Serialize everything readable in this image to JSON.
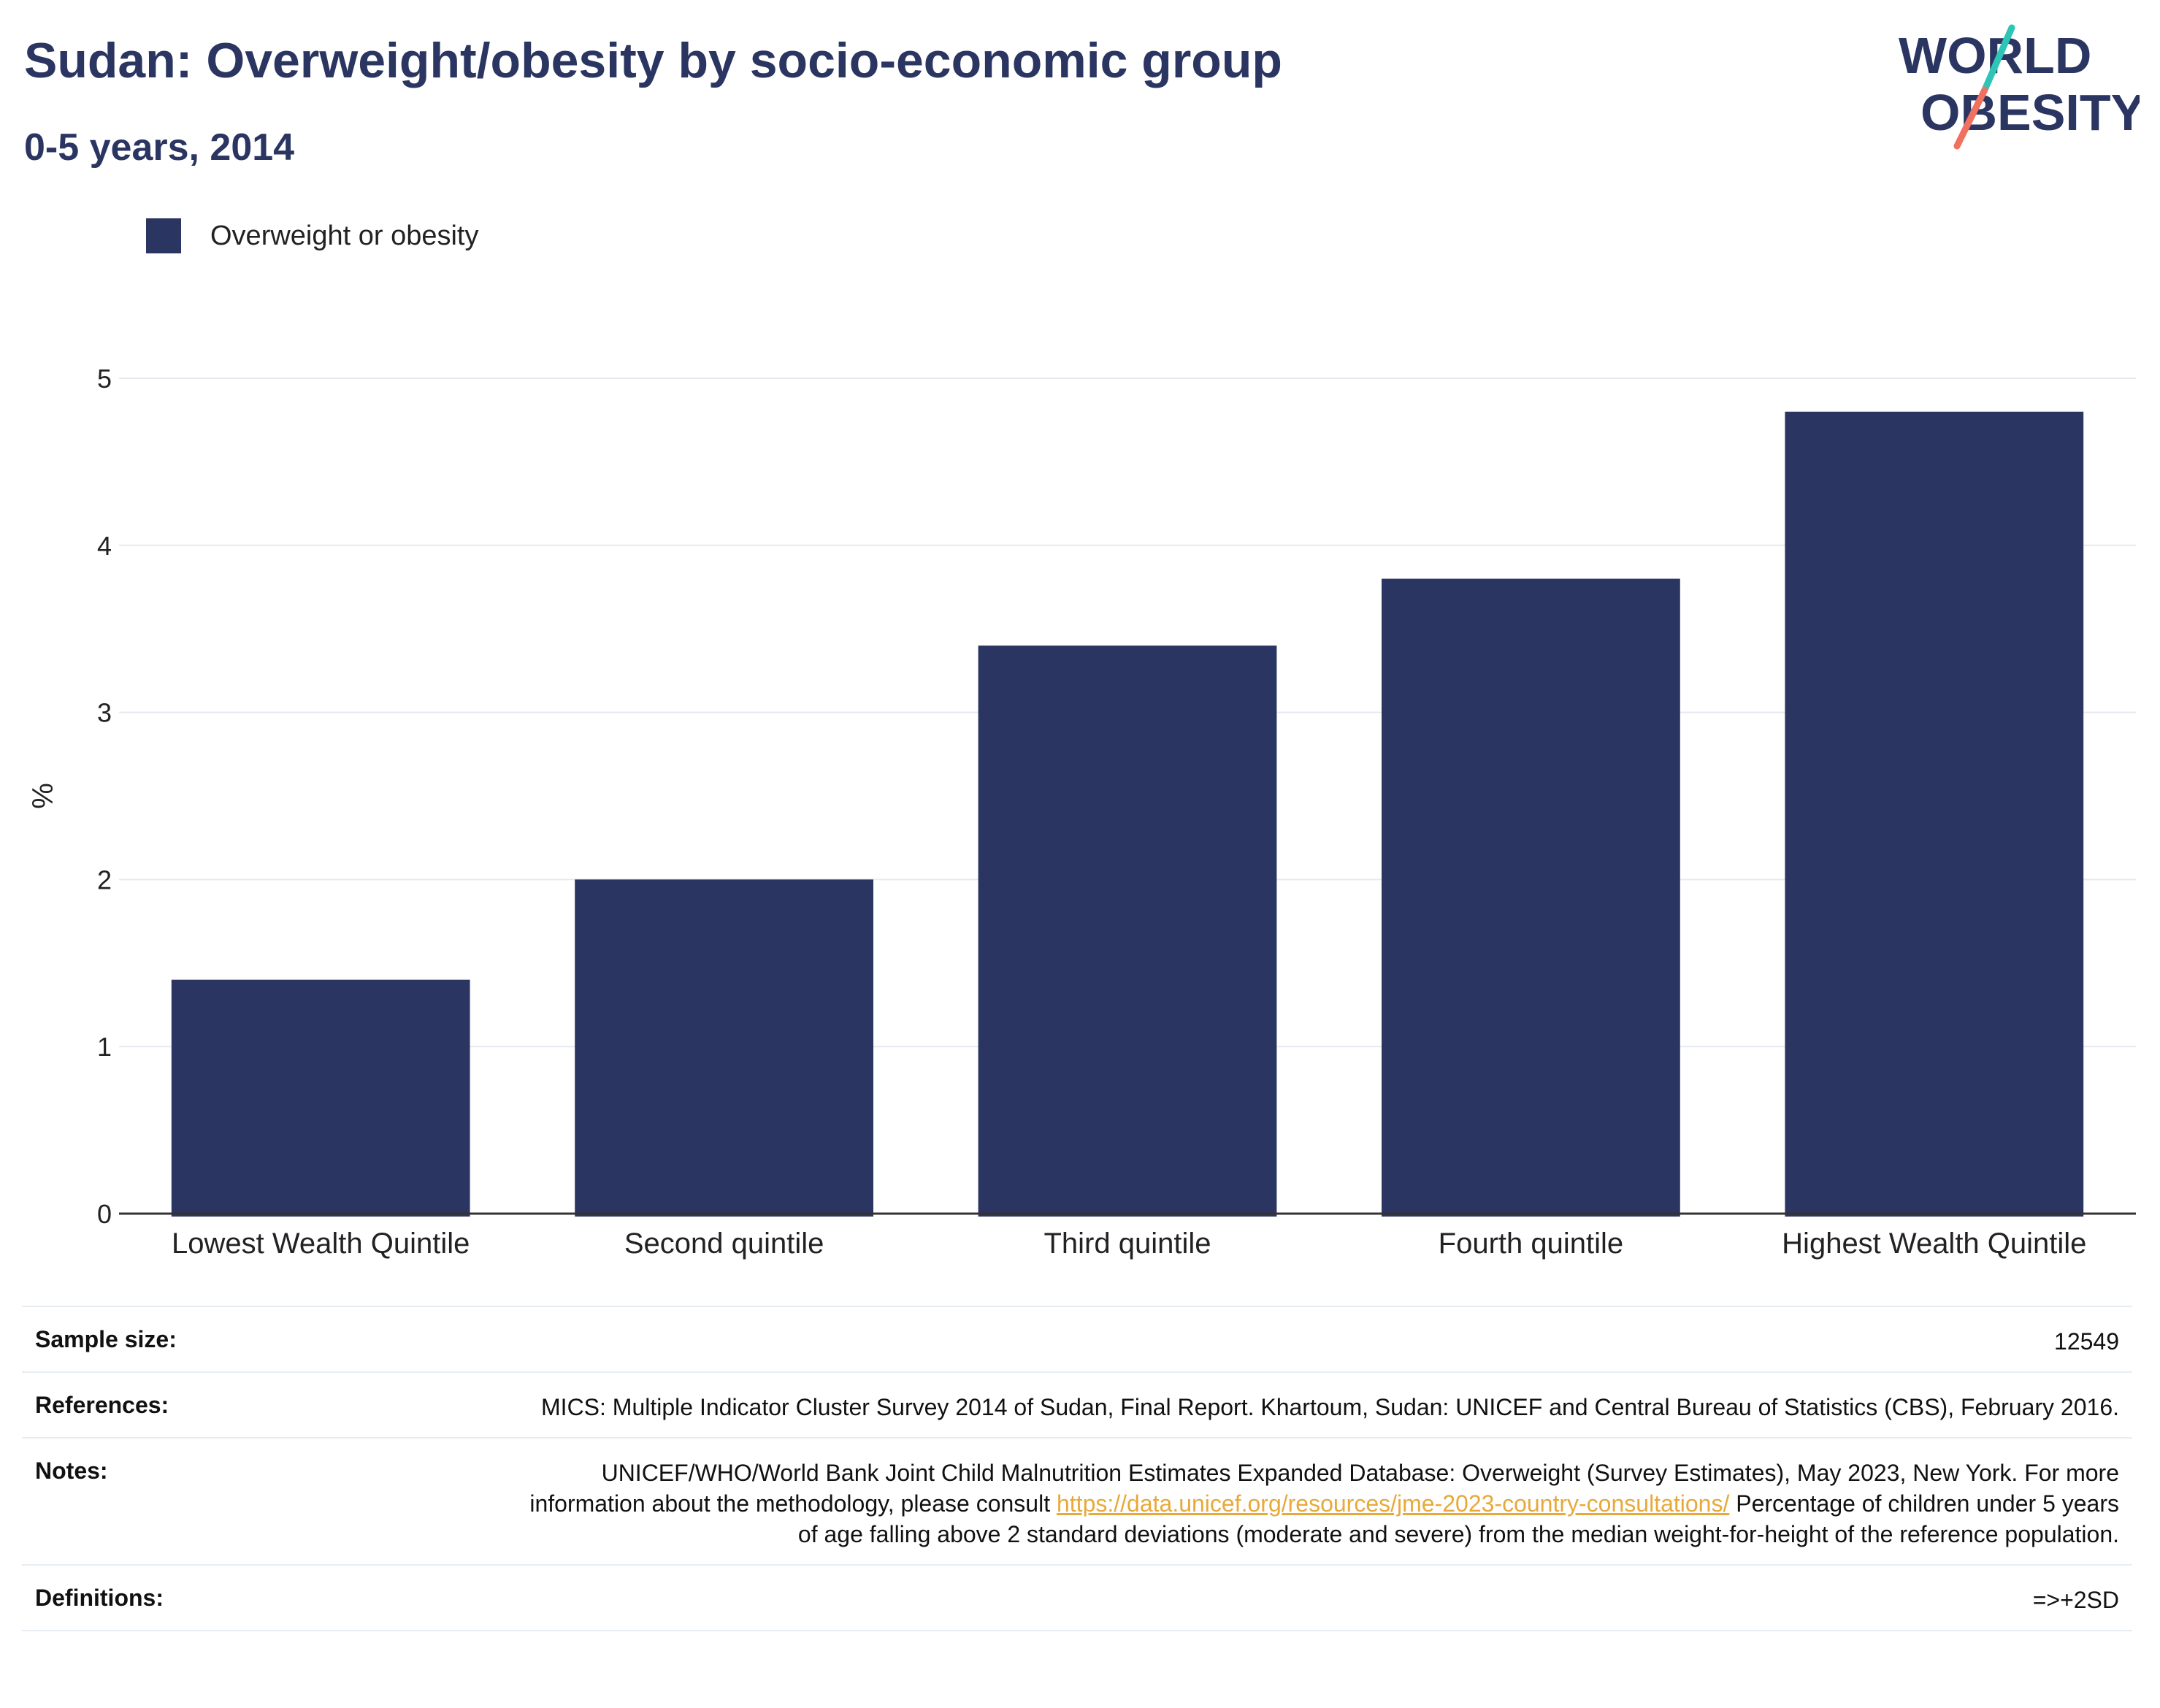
{
  "header": {
    "title": "Sudan: Overweight/obesity by socio-economic group",
    "subtitle": "0-5 years, 2014",
    "logo_line1": "WORLD",
    "logo_line2": "OBESITY"
  },
  "legend": {
    "label": "Overweight or obesity"
  },
  "colors": {
    "bar": "#2b3561",
    "title": "#2b3561",
    "grid": "#e6e9f0",
    "axis": "#333333",
    "link": "#e8a93a",
    "logo_teal": "#2ec4b6",
    "logo_coral": "#f0715f"
  },
  "chart_data": {
    "type": "bar",
    "categories": [
      "Lowest Wealth Quintile",
      "Second quintile",
      "Third quintile",
      "Fourth quintile",
      "Highest Wealth Quintile"
    ],
    "series": [
      {
        "name": "Overweight or obesity",
        "values": [
          1.4,
          2.0,
          3.4,
          3.8,
          4.8
        ]
      }
    ],
    "ylabel": "%",
    "ylim": [
      0,
      5
    ],
    "yticks": [
      "0",
      "1",
      "2",
      "3",
      "4",
      "5"
    ],
    "grid": true,
    "legend_position": "top-left"
  },
  "meta": {
    "sample_size_label": "Sample size:",
    "sample_size_value": "12549",
    "references_label": "References:",
    "references_value": "MICS: Multiple Indicator Cluster Survey 2014 of Sudan, Final Report. Khartoum, Sudan: UNICEF and Central Bureau of Statistics (CBS), February 2016.",
    "notes_label": "Notes:",
    "notes_text_1": "UNICEF/WHO/World Bank Joint Child Malnutrition Estimates Expanded Database: Overweight (Survey Estimates), May 2023, New York. For more information about the methodology, please consult",
    "notes_link": "https://data.unicef.org/resources/jme-2023-country-consultations/",
    "notes_text_2": "Percentage of children under 5 years of age falling above 2 standard deviations (moderate and severe) from the median weight-for-height of the reference population.",
    "definitions_label": "Definitions:",
    "definitions_value": "=>+2SD"
  }
}
